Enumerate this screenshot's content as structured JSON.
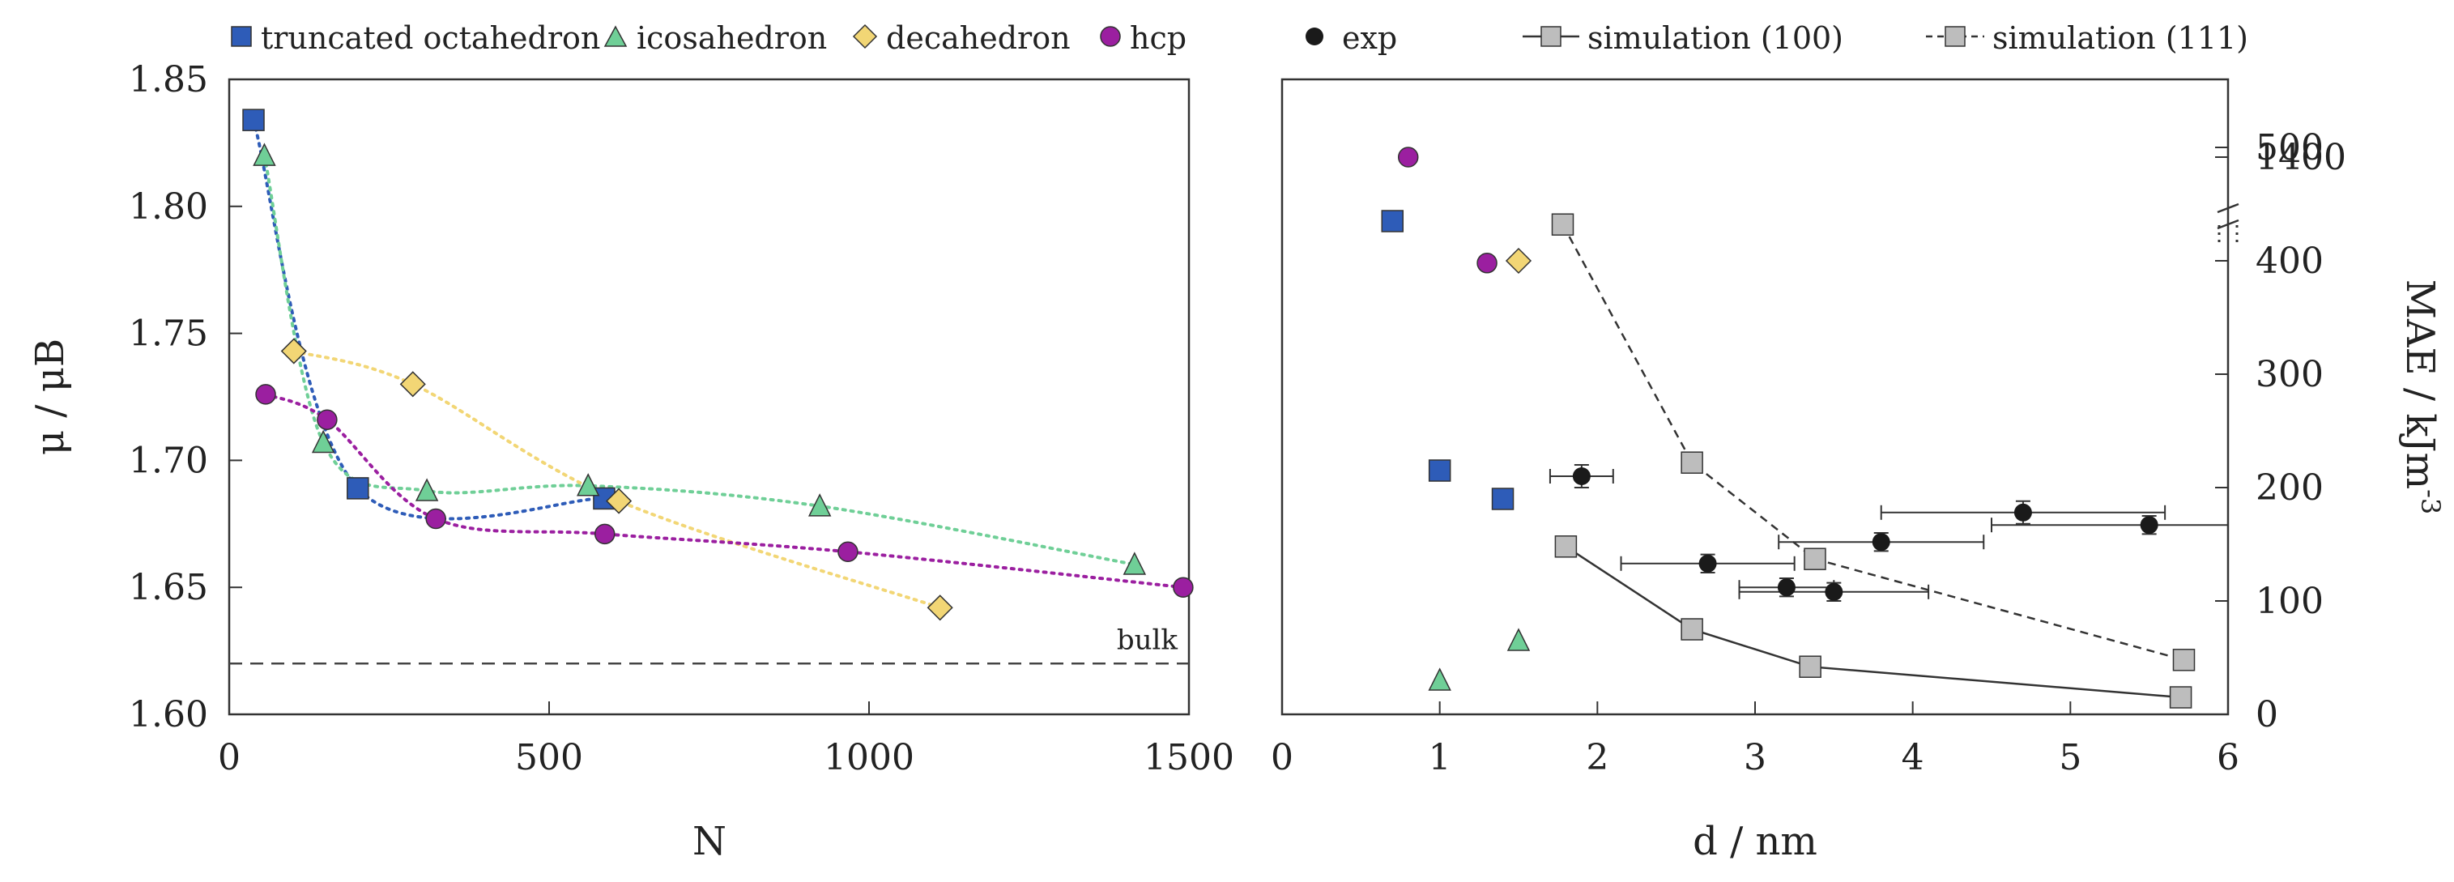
{
  "colors": {
    "truncated_octahedron": "#2e5cb8",
    "icosahedron": "#6fcf97",
    "decahedron": "#f2d675",
    "hcp": "#9b1fa0",
    "exp": "#1a1a1a",
    "simulation": "#bdbdbd",
    "frame": "#333333"
  },
  "chart_data": [
    {
      "type": "scatter",
      "xlabel": "N",
      "ylabel": "μ / μB",
      "xlim": [
        0,
        1500
      ],
      "ylim": [
        1.6,
        1.85
      ],
      "xticks": [
        "0",
        "500",
        "1000",
        "1500"
      ],
      "yticks": [
        "1.60",
        "1.65",
        "1.70",
        "1.75",
        "1.80",
        "1.85"
      ],
      "legend_position": "top",
      "reference_line": {
        "label": "bulk",
        "y": 1.62
      },
      "series": [
        {
          "key": "truncated_octahedron",
          "name": "truncated octahedron",
          "marker": "square",
          "points": [
            [
              38,
              1.834
            ],
            [
              201,
              1.689
            ],
            [
              586,
              1.685
            ]
          ]
        },
        {
          "key": "icosahedron",
          "name": "icosahedron",
          "marker": "triangle",
          "points": [
            [
              55,
              1.82
            ],
            [
              147,
              1.707
            ],
            [
              309,
              1.688
            ],
            [
              561,
              1.69
            ],
            [
              923,
              1.682
            ],
            [
              1415,
              1.659
            ]
          ]
        },
        {
          "key": "decahedron",
          "name": "decahedron",
          "marker": "diamond",
          "points": [
            [
              101,
              1.743
            ],
            [
              287,
              1.73
            ],
            [
              609,
              1.684
            ],
            [
              1111,
              1.642
            ]
          ]
        },
        {
          "key": "hcp",
          "name": "hcp",
          "marker": "circle",
          "points": [
            [
              57,
              1.726
            ],
            [
              153,
              1.716
            ],
            [
              323,
              1.677
            ],
            [
              587,
              1.671
            ],
            [
              967,
              1.664
            ],
            [
              1491,
              1.65
            ]
          ]
        }
      ]
    },
    {
      "type": "scatter",
      "xlabel": "d / nm",
      "ylabel": "MAE / kJm-3",
      "ylabel_main": "MAE / kJm",
      "ylabel_sup": "-3",
      "xlim": [
        0,
        6
      ],
      "ylim": [
        0,
        560
      ],
      "xticks": [
        "0",
        "1",
        "2",
        "3",
        "4",
        "5",
        "6"
      ],
      "yticks": [
        "0",
        "100",
        "200",
        "300",
        "400",
        "500"
      ],
      "axis_break": {
        "tick_label": "1400",
        "value": 1400
      },
      "legend_position": "top",
      "series": [
        {
          "key": "truncated_octahedron",
          "marker": "square",
          "points": [
            [
              0.7,
              435
            ],
            [
              1.0,
              215
            ],
            [
              1.4,
              190
            ]
          ]
        },
        {
          "key": "icosahedron",
          "marker": "triangle",
          "points": [
            [
              1.0,
              30
            ],
            [
              1.5,
              65
            ]
          ]
        },
        {
          "key": "decahedron",
          "marker": "diamond",
          "points": [
            [
              1.5,
              400
            ]
          ]
        },
        {
          "key": "hcp",
          "marker": "circle",
          "points": [
            [
              0.8,
              1400
            ],
            [
              1.3,
              398
            ]
          ]
        },
        {
          "key": "exp",
          "name": "exp",
          "marker": "filled-circle",
          "points": [
            {
              "x": 1.9,
              "y": 210,
              "xerr": 0.2,
              "yerr": 10
            },
            {
              "x": 2.7,
              "y": 133,
              "xerr": 0.55,
              "yerr": 8
            },
            {
              "x": 3.2,
              "y": 112,
              "xerr": 0.3,
              "yerr": 8
            },
            {
              "x": 3.5,
              "y": 108,
              "xerr": 0.6,
              "yerr": 8
            },
            {
              "x": 3.8,
              "y": 152,
              "xerr": 0.65,
              "yerr": 8
            },
            {
              "x": 4.7,
              "y": 178,
              "xerr": 0.9,
              "yerr": 10
            },
            {
              "x": 5.5,
              "y": 167,
              "xerr": 1.0,
              "yerr": 8
            }
          ]
        },
        {
          "key": "sim100",
          "name": "simulation (100)",
          "marker": "gray-square",
          "line": "solid",
          "points": [
            [
              1.8,
              148
            ],
            [
              2.6,
              75
            ],
            [
              3.35,
              42
            ],
            [
              5.7,
              15
            ]
          ]
        },
        {
          "key": "sim111",
          "name": "simulation (111)",
          "marker": "gray-square",
          "line": "dashed",
          "points": [
            [
              1.78,
              432
            ],
            [
              2.6,
              222
            ],
            [
              3.38,
              137
            ],
            [
              5.72,
              48
            ]
          ]
        }
      ]
    }
  ]
}
